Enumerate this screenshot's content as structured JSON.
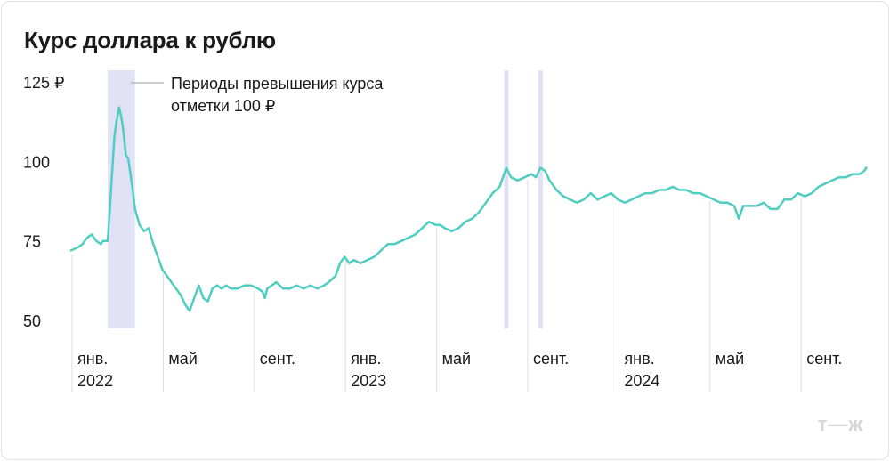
{
  "title": "Курс доллара к рублю",
  "brand_logo": "т—ж",
  "colors": {
    "line": "#4ecdc0",
    "band": "#dcdcf5",
    "grid": "#dddddd",
    "text": "#1a1a1a"
  },
  "chart_data": {
    "type": "line",
    "title": "Курс доллара к рублю",
    "ylim": [
      50,
      125
    ],
    "y_ticks": [
      {
        "value": 125,
        "label": "125 ₽"
      },
      {
        "value": 100,
        "label": "100"
      },
      {
        "value": 75,
        "label": "75"
      },
      {
        "value": 50,
        "label": "50"
      }
    ],
    "x_ticks": [
      {
        "month": 0,
        "label": "янв.",
        "year": "2022"
      },
      {
        "month": 4,
        "label": "май",
        "year": ""
      },
      {
        "month": 8,
        "label": "сент.",
        "year": ""
      },
      {
        "month": 12,
        "label": "янв.",
        "year": "2023"
      },
      {
        "month": 16,
        "label": "май",
        "year": ""
      },
      {
        "month": 20,
        "label": "сент.",
        "year": ""
      },
      {
        "month": 24,
        "label": "янв.",
        "year": "2024"
      },
      {
        "month": 28,
        "label": "май",
        "year": ""
      },
      {
        "month": 32,
        "label": "сент.",
        "year": ""
      }
    ],
    "legend": "Периоды превышения курса отметки 100 ₽",
    "bands": [
      [
        1.6,
        2.8
      ],
      [
        19.0,
        19.2
      ],
      [
        20.5,
        20.7
      ]
    ],
    "series": [
      {
        "values": [
          [
            0.0,
            72
          ],
          [
            0.3,
            73
          ],
          [
            0.5,
            74
          ],
          [
            0.7,
            76
          ],
          [
            0.9,
            77
          ],
          [
            1.1,
            75
          ],
          [
            1.3,
            74
          ],
          [
            1.4,
            75
          ],
          [
            1.6,
            75
          ],
          [
            1.7,
            85
          ],
          [
            1.8,
            97
          ],
          [
            1.9,
            108
          ],
          [
            2.0,
            113
          ],
          [
            2.1,
            117
          ],
          [
            2.2,
            114
          ],
          [
            2.3,
            109
          ],
          [
            2.4,
            102
          ],
          [
            2.5,
            101
          ],
          [
            2.6,
            96
          ],
          [
            2.7,
            91
          ],
          [
            2.8,
            85
          ],
          [
            3.0,
            80
          ],
          [
            3.2,
            78
          ],
          [
            3.4,
            79
          ],
          [
            3.6,
            74
          ],
          [
            3.8,
            70
          ],
          [
            4.0,
            66
          ],
          [
            4.2,
            64
          ],
          [
            4.4,
            62
          ],
          [
            4.6,
            60
          ],
          [
            4.8,
            58
          ],
          [
            5.0,
            55
          ],
          [
            5.2,
            53
          ],
          [
            5.4,
            57
          ],
          [
            5.6,
            61
          ],
          [
            5.8,
            57
          ],
          [
            6.0,
            56
          ],
          [
            6.2,
            60
          ],
          [
            6.4,
            61
          ],
          [
            6.6,
            60
          ],
          [
            6.8,
            61
          ],
          [
            7.0,
            60
          ],
          [
            7.3,
            60
          ],
          [
            7.6,
            61
          ],
          [
            7.9,
            61
          ],
          [
            8.2,
            60
          ],
          [
            8.4,
            59
          ],
          [
            8.5,
            57
          ],
          [
            8.6,
            60
          ],
          [
            8.8,
            61
          ],
          [
            9.0,
            62
          ],
          [
            9.3,
            60
          ],
          [
            9.6,
            60
          ],
          [
            9.9,
            61
          ],
          [
            10.2,
            60
          ],
          [
            10.5,
            61
          ],
          [
            10.8,
            60
          ],
          [
            11.1,
            61
          ],
          [
            11.3,
            62
          ],
          [
            11.6,
            64
          ],
          [
            11.8,
            68
          ],
          [
            12.0,
            70
          ],
          [
            12.2,
            68
          ],
          [
            12.4,
            69
          ],
          [
            12.7,
            68
          ],
          [
            13.0,
            69
          ],
          [
            13.3,
            70
          ],
          [
            13.6,
            72
          ],
          [
            13.9,
            74
          ],
          [
            14.2,
            74
          ],
          [
            14.5,
            75
          ],
          [
            14.8,
            76
          ],
          [
            15.1,
            77
          ],
          [
            15.4,
            79
          ],
          [
            15.7,
            81
          ],
          [
            16.0,
            80
          ],
          [
            16.2,
            80
          ],
          [
            16.4,
            79
          ],
          [
            16.7,
            78
          ],
          [
            17.0,
            79
          ],
          [
            17.3,
            81
          ],
          [
            17.6,
            82
          ],
          [
            17.9,
            84
          ],
          [
            18.2,
            87
          ],
          [
            18.5,
            90
          ],
          [
            18.8,
            92
          ],
          [
            19.0,
            96
          ],
          [
            19.1,
            98
          ],
          [
            19.3,
            95
          ],
          [
            19.6,
            94
          ],
          [
            19.9,
            95
          ],
          [
            20.2,
            96
          ],
          [
            20.4,
            95
          ],
          [
            20.6,
            98
          ],
          [
            20.8,
            97
          ],
          [
            21.0,
            94
          ],
          [
            21.3,
            91
          ],
          [
            21.6,
            89
          ],
          [
            21.9,
            88
          ],
          [
            22.2,
            87
          ],
          [
            22.5,
            88
          ],
          [
            22.8,
            90
          ],
          [
            23.1,
            88
          ],
          [
            23.4,
            89
          ],
          [
            23.7,
            90
          ],
          [
            24.0,
            88
          ],
          [
            24.3,
            87
          ],
          [
            24.6,
            88
          ],
          [
            24.9,
            89
          ],
          [
            25.2,
            90
          ],
          [
            25.5,
            90
          ],
          [
            25.8,
            91
          ],
          [
            26.1,
            91
          ],
          [
            26.4,
            92
          ],
          [
            26.7,
            91
          ],
          [
            27.0,
            91
          ],
          [
            27.3,
            90
          ],
          [
            27.6,
            90
          ],
          [
            27.9,
            89
          ],
          [
            28.2,
            88
          ],
          [
            28.5,
            87
          ],
          [
            28.8,
            87
          ],
          [
            29.1,
            86
          ],
          [
            29.3,
            82
          ],
          [
            29.5,
            86
          ],
          [
            29.8,
            86
          ],
          [
            30.1,
            86
          ],
          [
            30.4,
            87
          ],
          [
            30.7,
            85
          ],
          [
            31.0,
            85
          ],
          [
            31.3,
            88
          ],
          [
            31.6,
            88
          ],
          [
            31.9,
            90
          ],
          [
            32.2,
            89
          ],
          [
            32.5,
            90
          ],
          [
            32.8,
            92
          ],
          [
            33.1,
            93
          ],
          [
            33.4,
            94
          ],
          [
            33.7,
            95
          ],
          [
            34.0,
            95
          ],
          [
            34.3,
            96
          ],
          [
            34.6,
            96
          ],
          [
            34.8,
            97
          ],
          [
            34.9,
            98
          ]
        ]
      }
    ]
  }
}
